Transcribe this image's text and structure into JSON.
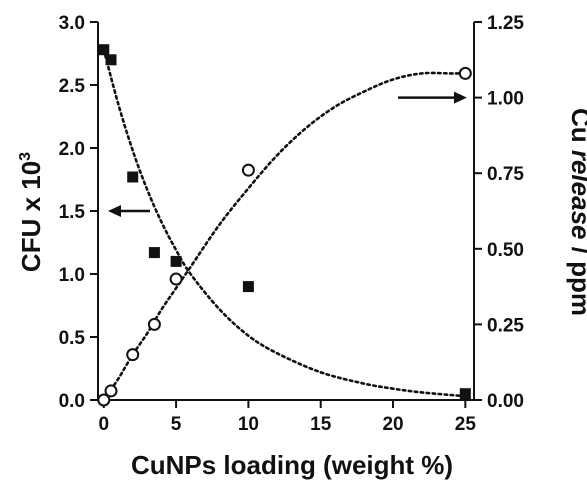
{
  "chart_data": {
    "type": "scatter",
    "xlabel": "CuNPs loading (weight %)",
    "ylabel_left": {
      "main": "CFU x 10",
      "sup": "3"
    },
    "ylabel_right": {
      "prefix": "Cu ",
      "italic": "release",
      "suffix": " / ppm"
    },
    "x_ticks": [
      "0",
      "5",
      "10",
      "15",
      "20",
      "25"
    ],
    "x_tick_values": [
      0,
      5,
      10,
      15,
      20,
      25
    ],
    "xlim": [
      -0.4,
      25.6
    ],
    "ylim_left": [
      0,
      3.0
    ],
    "ylim_right": [
      0,
      1.25
    ],
    "y_left_ticks": [
      "0.0",
      "0.5",
      "1.0",
      "1.5",
      "2.0",
      "2.5",
      "3.0"
    ],
    "y_left_tick_values": [
      0,
      0.5,
      1.0,
      1.5,
      2.0,
      2.5,
      3.0
    ],
    "y_right_ticks": [
      "0.00",
      "0.25",
      "0.50",
      "0.75",
      "1.00",
      "1.25"
    ],
    "y_right_tick_values": [
      0,
      0.25,
      0.5,
      0.75,
      1.0,
      1.25
    ],
    "grid": false,
    "series": [
      {
        "axis": "left",
        "marker": "filled-square",
        "x": [
          0,
          0.5,
          2,
          3.5,
          5,
          10,
          25
        ],
        "y": [
          2.78,
          2.7,
          1.77,
          1.17,
          1.1,
          0.9,
          0.05
        ]
      },
      {
        "axis": "right",
        "marker": "open-circle",
        "x": [
          0,
          0.5,
          2,
          3.5,
          5,
          10,
          25
        ],
        "y": [
          0.0,
          0.03,
          0.15,
          0.25,
          0.4,
          0.76,
          1.08
        ]
      }
    ],
    "fit_curves": [
      {
        "axis": "left",
        "style": "dotted",
        "x": [
          0,
          1,
          2,
          3,
          4,
          5,
          6,
          8,
          10,
          12,
          15,
          18,
          20,
          22,
          25
        ],
        "y": [
          2.78,
          2.35,
          1.98,
          1.67,
          1.41,
          1.19,
          1.0,
          0.72,
          0.51,
          0.37,
          0.22,
          0.13,
          0.09,
          0.06,
          0.03
        ]
      },
      {
        "axis": "right",
        "style": "dotted",
        "x": [
          0,
          1,
          2,
          3,
          4,
          5,
          6,
          8,
          10,
          12,
          14,
          16,
          18,
          20,
          22,
          24,
          25
        ],
        "y": [
          0.0,
          0.07,
          0.15,
          0.22,
          0.3,
          0.37,
          0.44,
          0.58,
          0.7,
          0.81,
          0.9,
          0.97,
          1.02,
          1.06,
          1.08,
          1.08,
          1.08
        ]
      }
    ],
    "annotations": [
      {
        "type": "arrow",
        "direction": "left",
        "points_to": "left-axis"
      },
      {
        "type": "arrow",
        "direction": "right",
        "points_to": "right-axis"
      }
    ],
    "colors": {
      "ink": "#111111"
    }
  }
}
